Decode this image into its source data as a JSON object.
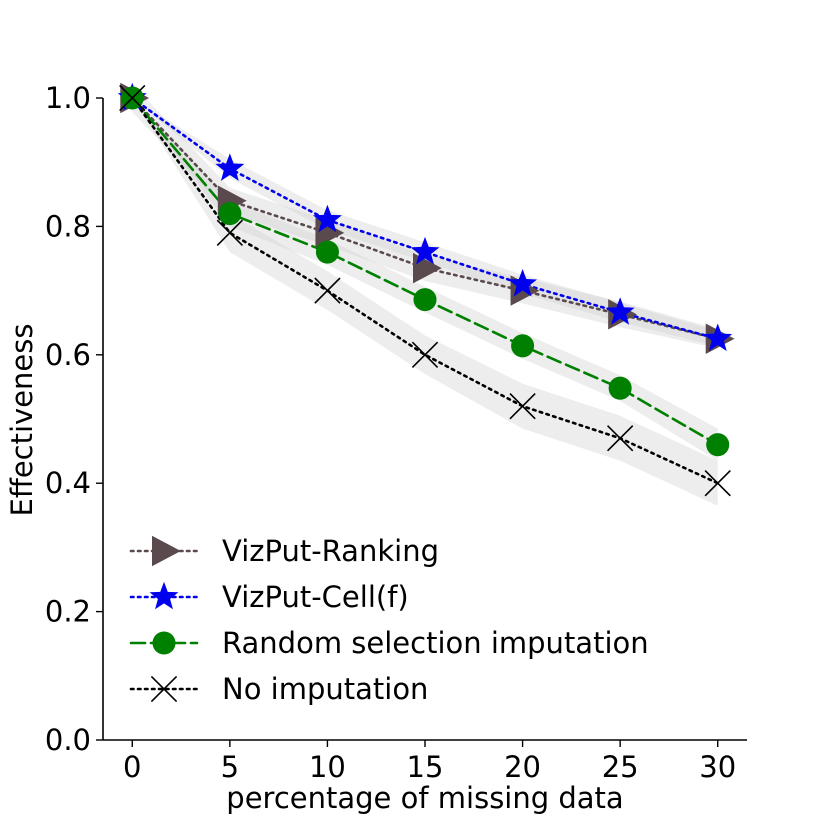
{
  "chart_data": {
    "type": "line",
    "xlabel": "percentage of missing data",
    "ylabel": "Effectiveness",
    "xlim": [
      -1.5,
      31.5
    ],
    "ylim": [
      0.0,
      1.0
    ],
    "x": [
      0,
      5,
      10,
      15,
      20,
      25,
      30
    ],
    "xticks": [
      0,
      5,
      10,
      15,
      20,
      25,
      30
    ],
    "yticks": [
      0.0,
      0.2,
      0.4,
      0.6,
      0.8,
      1.0
    ],
    "ytick_labels": [
      "0.0",
      "0.2",
      "0.4",
      "0.6",
      "0.8",
      "1.0"
    ],
    "grid": false,
    "legend_position": "lower-left",
    "band_color": "#d3d3d3",
    "series": [
      {
        "name": "VizPut-Ranking",
        "values": [
          1.0,
          0.84,
          0.79,
          0.735,
          0.7,
          0.663,
          0.625
        ],
        "band": [
          0.022,
          0.02,
          0.02,
          0.02,
          0.02,
          0.02,
          0.015
        ],
        "color": "#5a4a4e",
        "line_style": "dotted",
        "marker": "triangle-right"
      },
      {
        "name": "VizPut-Cell(f)",
        "values": [
          1.0,
          0.89,
          0.81,
          0.76,
          0.71,
          0.666,
          0.625
        ],
        "band": [
          0.0,
          0.015,
          0.015,
          0.015,
          0.015,
          0.015,
          0.012
        ],
        "color": "#0000ee",
        "line_style": "dotted",
        "marker": "star"
      },
      {
        "name": "Random selection imputation",
        "values": [
          1.0,
          0.82,
          0.76,
          0.686,
          0.614,
          0.548,
          0.46
        ],
        "band": [
          0.0,
          0.02,
          0.02,
          0.02,
          0.02,
          0.02,
          0.025
        ],
        "color": "#008000",
        "line_style": "dashed",
        "marker": "circle"
      },
      {
        "name": "No imputation",
        "values": [
          1.0,
          0.79,
          0.7,
          0.6,
          0.52,
          0.47,
          0.4
        ],
        "band": [
          0.0,
          0.03,
          0.03,
          0.03,
          0.035,
          0.035,
          0.035
        ],
        "color": "#000000",
        "line_style": "dotted",
        "marker": "x"
      }
    ]
  }
}
